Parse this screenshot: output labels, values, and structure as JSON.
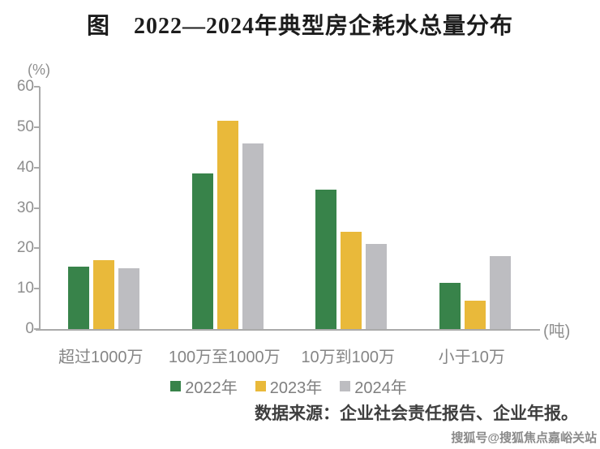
{
  "title": "图　2022—2024年典型房企耗水总量分布",
  "chart_data": {
    "type": "bar",
    "title": "图 2022—2024年典型房企耗水总量分布",
    "y_unit_label": "(%)",
    "x_unit_label": "(吨)",
    "categories": [
      "超过1000万",
      "100万至1000万",
      "10万到100万",
      "小于10万"
    ],
    "series": [
      {
        "name": "2022年",
        "color": "#38834a",
        "values": [
          15.5,
          38.5,
          34.5,
          11.5
        ]
      },
      {
        "name": "2023年",
        "color": "#e9b93a",
        "values": [
          17,
          51.5,
          24,
          7
        ]
      },
      {
        "name": "2024年",
        "color": "#bdbdc1",
        "values": [
          15,
          46,
          21,
          18
        ]
      }
    ],
    "ylim": [
      0,
      60
    ],
    "yticks": [
      0,
      10,
      20,
      30,
      40,
      50,
      60
    ],
    "grid": false,
    "legend_position": "bottom"
  },
  "source": "数据来源：企业社会责任报告、企业年报。",
  "watermark": "搜狐号@搜狐焦点嘉峪关站",
  "colors": {
    "bar_2022": "#38834a",
    "bar_2023": "#e9b93a",
    "bar_2024": "#bdbdc1",
    "axis": "#aaaaaa",
    "tick_text": "#8e8e8e",
    "category_text": "#858585",
    "legend_text": "#7f7f7f",
    "title_text": "#1c1c1c",
    "source_text": "#3e3e3e",
    "watermark_text": "#8a8a8a"
  }
}
